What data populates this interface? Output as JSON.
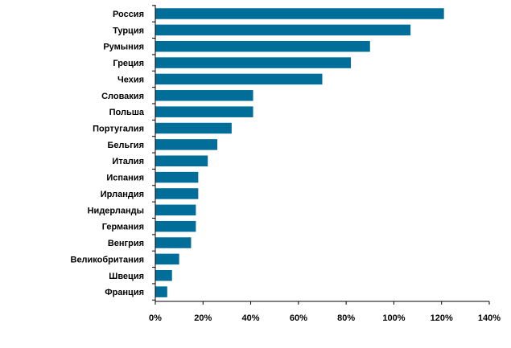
{
  "chart_data": {
    "type": "bar",
    "orientation": "horizontal",
    "title": "",
    "xlabel": "",
    "ylabel": "",
    "categories": [
      "Россия",
      "Турция",
      "Румыния",
      "Греция",
      "Чехия",
      "Словакия",
      "Польша",
      "Португалия",
      "Бельгия",
      "Италия",
      "Испания",
      "Ирландия",
      "Нидерланды",
      "Германия",
      "Венгрия",
      "Великобритания",
      "Швеция",
      "Франция"
    ],
    "values": [
      121,
      107,
      90,
      82,
      70,
      41,
      41,
      32,
      26,
      22,
      18,
      18,
      17,
      17,
      15,
      10,
      7,
      5
    ],
    "xlim": [
      0,
      140
    ],
    "x_ticks": [
      0,
      20,
      40,
      60,
      80,
      100,
      120,
      140
    ],
    "x_tick_labels": [
      "0%",
      "20%",
      "40%",
      "60%",
      "80%",
      "100%",
      "120%",
      "140%"
    ],
    "grid": false,
    "legend": "none",
    "colors": {
      "bar": "#006E98",
      "axis": "#000000"
    }
  }
}
